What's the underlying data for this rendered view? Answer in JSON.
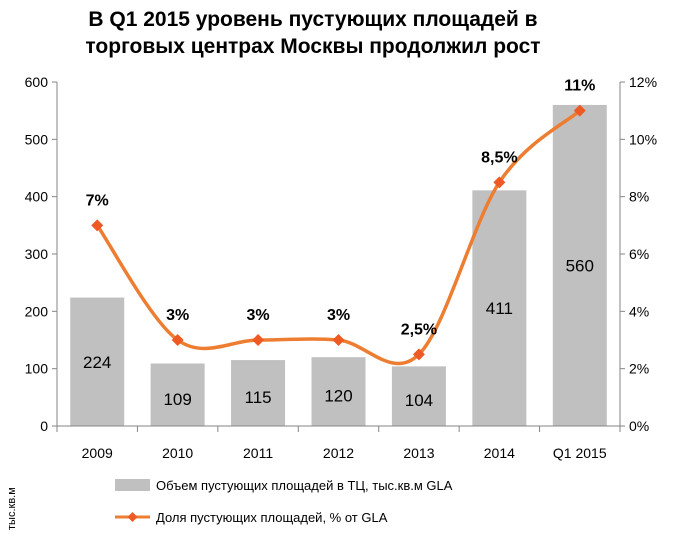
{
  "chart_data": {
    "type": "bar+line",
    "title_lines": [
      "В Q1 2015 уровень пустующих площадей в",
      "торговых центрах Москвы продолжил рост"
    ],
    "categories": [
      "2009",
      "2010",
      "2011",
      "2012",
      "2013",
      "2014",
      "Q1 2015"
    ],
    "series": [
      {
        "name": "Объем пустующих площадей в ТЦ, тыс.кв.м GLA",
        "type": "bar",
        "axis": "left",
        "values": [
          224,
          109,
          115,
          120,
          104,
          411,
          560
        ],
        "labels": [
          "224",
          "109",
          "115",
          "120",
          "104",
          "411",
          "560"
        ]
      },
      {
        "name": "Доля пустующих площадей, % от GLA",
        "type": "line",
        "axis": "right",
        "values": [
          7,
          3,
          3,
          3,
          2.5,
          8.5,
          11
        ],
        "labels": [
          "7%",
          "3%",
          "3%",
          "3%",
          "2,5%",
          "8,5%",
          "11%"
        ]
      }
    ],
    "y_left": {
      "min": 0,
      "max": 600,
      "ticks": [
        "0",
        "100",
        "200",
        "300",
        "400",
        "500",
        "600"
      ]
    },
    "y_right": {
      "min": 0,
      "max": 12,
      "ticks": [
        "0%",
        "2%",
        "4%",
        "6%",
        "8%",
        "10%",
        "12%"
      ]
    },
    "ylabel_left": "тыс.кв.м",
    "legend_position": "bottom",
    "colors": {
      "bar": "#c0c0c0",
      "line": "#ed7d31",
      "marker": "#ed5a24",
      "axis": "#868686"
    }
  }
}
